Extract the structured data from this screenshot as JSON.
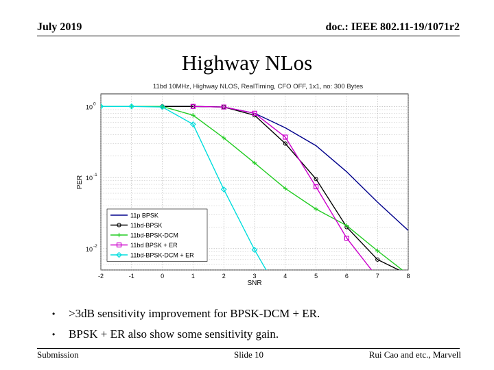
{
  "header": {
    "date": "July 2019",
    "doc_id": "doc.: IEEE 802.11-19/1071r2"
  },
  "slide_title": "Highway NLos",
  "bullets": [
    ">3dB sensitivity improvement for BPSK-DCM + ER.",
    "BPSK + ER also show some sensitivity gain."
  ],
  "footer": {
    "left": "Submission",
    "center": "Slide 10",
    "right": "Rui Cao and etc., Marvell"
  },
  "chart_data": {
    "type": "line",
    "title": "11bd 10MHz, Highway NLOS, RealTiming, CFO OFF, 1x1, no: 300 Bytes",
    "xlabel": "SNR",
    "ylabel": "PER",
    "xlim": [
      -2,
      8
    ],
    "ylim": [
      0.005,
      1.5
    ],
    "yscale": "log",
    "grid": true,
    "legend_position": "bottom-left",
    "x_ticks": [
      "-2",
      "-1",
      "0",
      "1",
      "2",
      "3",
      "4",
      "5",
      "6",
      "7",
      "8"
    ],
    "y_ticks": [
      {
        "value": 1,
        "base": "10",
        "exp": "0"
      },
      {
        "value": 0.1,
        "base": "10",
        "exp": "-1"
      },
      {
        "value": 0.01,
        "base": "10",
        "exp": "-2"
      }
    ],
    "series": [
      {
        "name": "11p BPSK",
        "color": "#00008b",
        "marker": "none",
        "x": [
          0,
          1,
          2,
          3,
          4,
          5,
          6,
          7,
          8
        ],
        "y": [
          1,
          1,
          0.98,
          0.8,
          0.5,
          0.28,
          0.12,
          0.045,
          0.018
        ]
      },
      {
        "name": "11bd-BPSK",
        "color": "#000000",
        "marker": "circle",
        "x": [
          0,
          1,
          2,
          3,
          4,
          5,
          6,
          7,
          8
        ],
        "y": [
          1,
          1,
          0.98,
          0.75,
          0.3,
          0.095,
          0.02,
          0.007,
          0.0043
        ]
      },
      {
        "name": "11bd-BPSK-DCM",
        "color": "#22cc22",
        "marker": "plus",
        "x": [
          -2,
          -1,
          0,
          1,
          2,
          3,
          4,
          5,
          6,
          7,
          8
        ],
        "y": [
          1,
          1,
          1,
          0.75,
          0.36,
          0.16,
          0.07,
          0.036,
          0.021,
          0.0093,
          0.0043
        ]
      },
      {
        "name": "11bd BPSK + ER",
        "color": "#cc00cc",
        "marker": "square",
        "x": [
          1,
          2,
          3,
          4,
          5,
          6,
          7
        ],
        "y": [
          1,
          0.98,
          0.8,
          0.37,
          0.074,
          0.014,
          0.0039
        ]
      },
      {
        "name": "11bd-BPSK-DCM + ER",
        "color": "#00dddd",
        "marker": "diamond",
        "x": [
          -2,
          -1,
          0,
          1,
          2,
          3,
          4
        ],
        "y": [
          1,
          1,
          0.98,
          0.56,
          0.068,
          0.0096,
          0.0017
        ]
      }
    ]
  }
}
